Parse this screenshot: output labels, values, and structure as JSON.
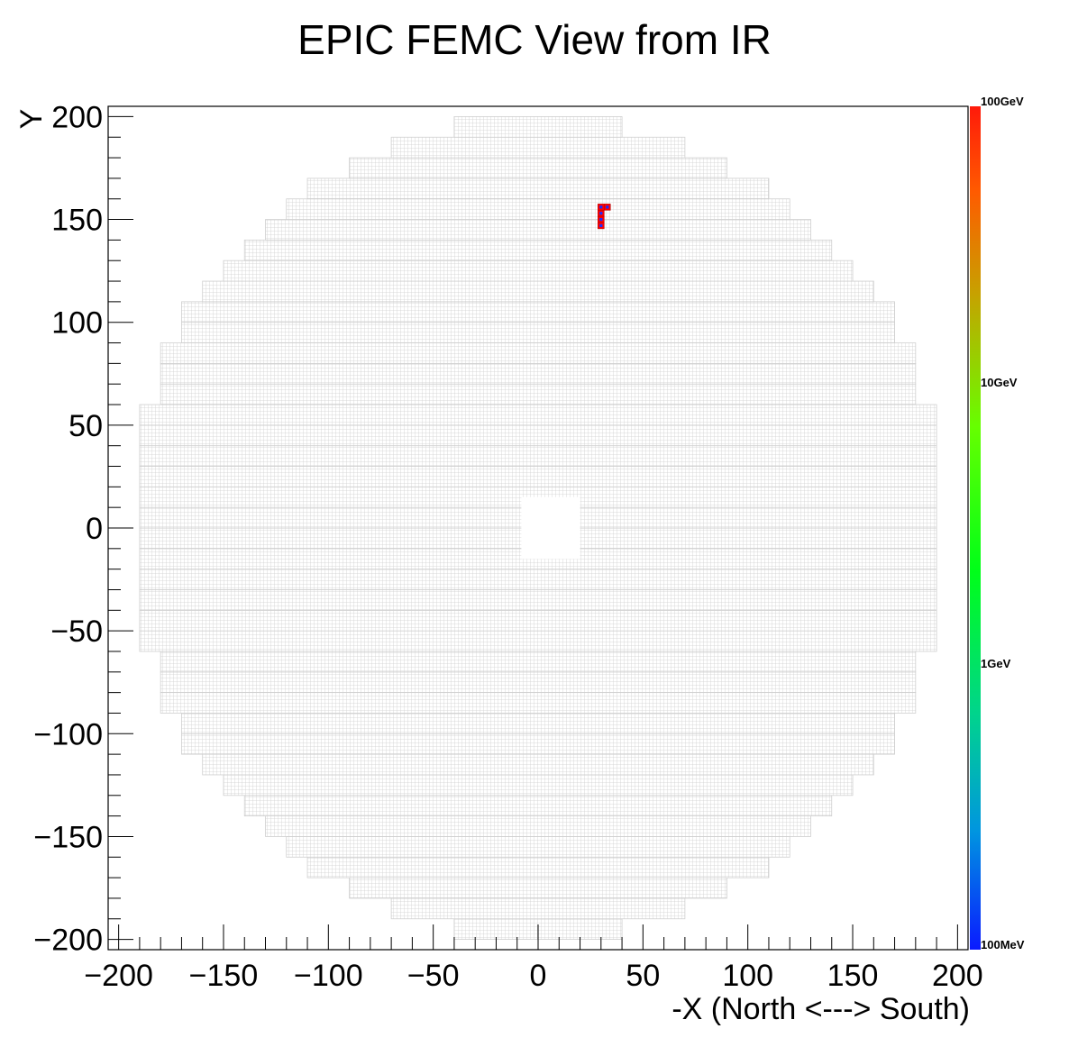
{
  "chart_data": {
    "type": "heatmap",
    "title": "EPIC FEMC View from IR",
    "xlabel": "-X (North <---> South)",
    "ylabel": "Y",
    "xlim": [
      -205,
      205
    ],
    "ylim": [
      -205,
      205
    ],
    "x_major_ticks": [
      -200,
      -150,
      -100,
      -50,
      0,
      50,
      100,
      150,
      200
    ],
    "y_major_ticks": [
      -200,
      -150,
      -100,
      -50,
      0,
      50,
      100,
      150,
      200
    ],
    "x_tick_labels": [
      "−200",
      "−150",
      "−100",
      "−50",
      "0",
      "50",
      "100",
      "150",
      "200"
    ],
    "y_tick_labels": [
      "−200",
      "−150",
      "−100",
      "−50",
      "0",
      "50",
      "100",
      "150",
      "200"
    ],
    "grid": false,
    "detector": {
      "outer_radius": 200,
      "beam_hole": {
        "x": [
          -8,
          20
        ],
        "y": [
          -15,
          15
        ]
      },
      "block_size": 10
    },
    "colorbar": {
      "scale": "log",
      "labels": [
        "100GeV",
        "10GeV",
        "1GeV",
        "100MeV"
      ],
      "colors": [
        "#ff1a0a",
        "#ff5a00",
        "#c8a000",
        "#66ff00",
        "#00ff18",
        "#00d48c",
        "#0095e0",
        "#0a1aff"
      ]
    },
    "hits": [
      {
        "x": 30,
        "y": 156,
        "level": "high"
      },
      {
        "x": 33,
        "y": 156,
        "level": "high"
      },
      {
        "x": 30,
        "y": 153,
        "level": "high"
      },
      {
        "x": 30,
        "y": 150,
        "level": "high"
      },
      {
        "x": 30,
        "y": 147,
        "level": "high"
      }
    ],
    "hit_colors": {
      "fill": "#ff0000",
      "marker": "#1a2cff"
    }
  }
}
